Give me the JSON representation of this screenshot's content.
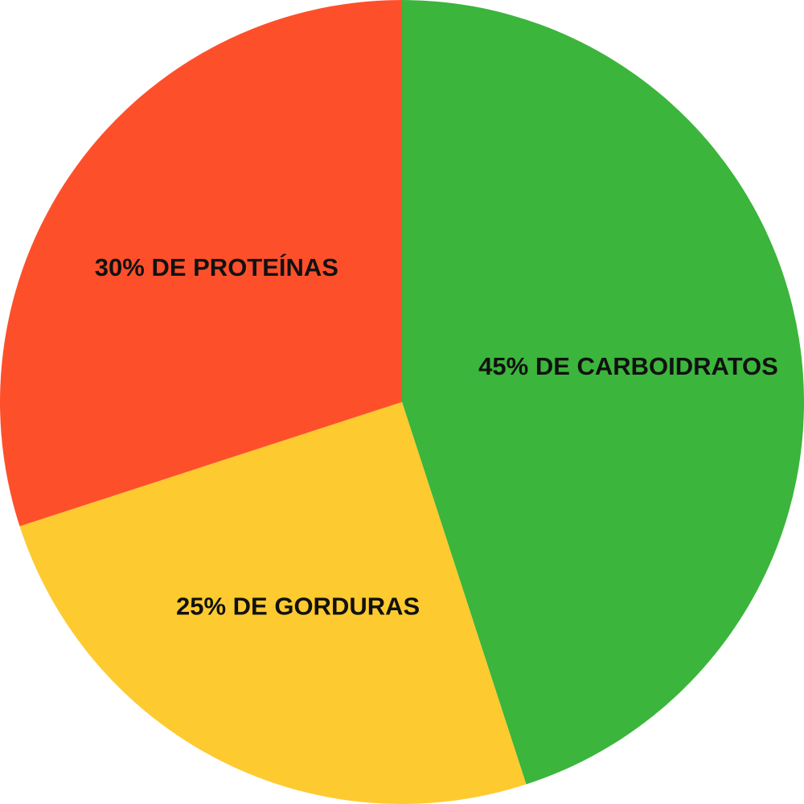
{
  "chart_data": {
    "type": "pie",
    "start_angle_deg": 0,
    "direction": "clockwise",
    "slices": [
      {
        "label": "45% DE CARBOIDRATOS",
        "value": 45,
        "color": "#3bb53b"
      },
      {
        "label": "25% DE GORDURAS",
        "value": 25,
        "color": "#fdca30"
      },
      {
        "label": "30% DE PROTEÍNAS",
        "value": 30,
        "color": "#fe4f2b"
      }
    ]
  }
}
